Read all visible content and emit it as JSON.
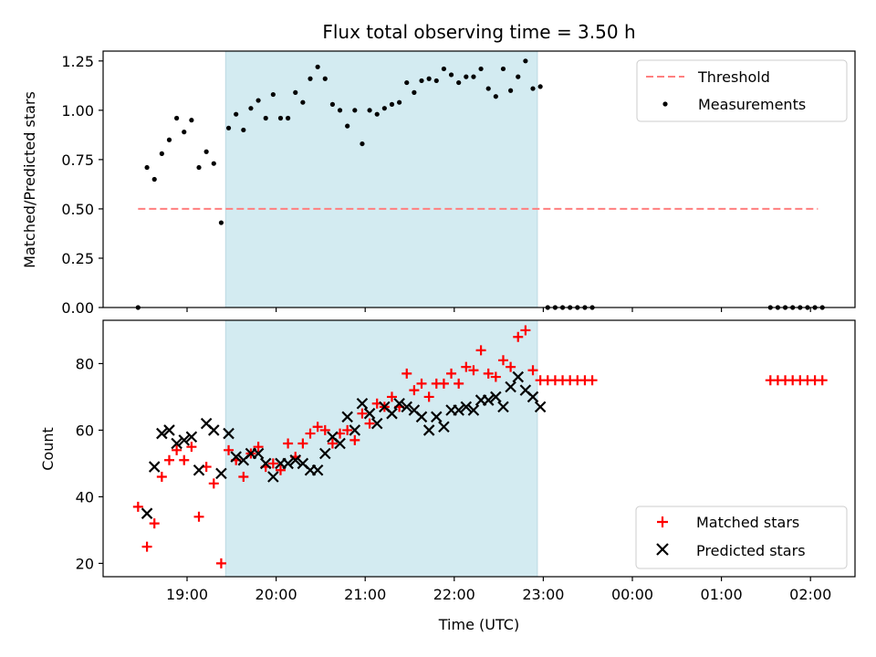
{
  "chart_data": [
    {
      "type": "scatter",
      "title": "Flux total observing time = 3.50 h",
      "xlabel": "",
      "ylabel": "Matched/Predicted stars",
      "ylim": [
        0,
        1.3
      ],
      "yticks": [
        "0.00",
        "0.25",
        "0.50",
        "0.75",
        "1.00",
        "1.25"
      ],
      "shaded_span": [
        "19:26",
        "22:56"
      ],
      "shade_color": "#d3ebf1",
      "legend": {
        "position": "upper right",
        "entries": [
          "Threshold",
          "Measurements"
        ]
      },
      "series": [
        {
          "name": "Threshold",
          "kind": "dashed-line",
          "color": "#ff7f7f",
          "x": [
            "18:27",
            "02:05"
          ],
          "y": [
            0.5,
            0.5
          ]
        },
        {
          "name": "Measurements",
          "kind": "dot",
          "color": "#000000",
          "x": [
            "18:27",
            "18:33",
            "18:38",
            "18:43",
            "18:48",
            "18:53",
            "18:58",
            "19:03",
            "19:08",
            "19:13",
            "19:18",
            "19:23",
            "19:28",
            "19:33",
            "19:38",
            "19:43",
            "19:48",
            "19:53",
            "19:58",
            "20:03",
            "20:08",
            "20:13",
            "20:18",
            "20:23",
            "20:28",
            "20:33",
            "20:38",
            "20:43",
            "20:48",
            "20:53",
            "20:58",
            "21:03",
            "21:08",
            "21:13",
            "21:18",
            "21:23",
            "21:28",
            "21:33",
            "21:38",
            "21:43",
            "21:48",
            "21:53",
            "21:58",
            "22:03",
            "22:08",
            "22:13",
            "22:18",
            "22:23",
            "22:28",
            "22:33",
            "22:38",
            "22:43",
            "22:48",
            "22:53",
            "22:58",
            "23:03",
            "23:08",
            "23:13",
            "23:18",
            "23:23",
            "23:28",
            "23:33",
            "01:33",
            "01:38",
            "01:43",
            "01:48",
            "01:53",
            "01:58",
            "02:03",
            "02:08"
          ],
          "y": [
            0.0,
            0.71,
            0.65,
            0.78,
            0.85,
            0.96,
            0.89,
            0.95,
            0.71,
            0.79,
            0.73,
            0.43,
            0.91,
            0.98,
            0.9,
            1.01,
            1.05,
            0.96,
            1.08,
            0.96,
            0.96,
            1.09,
            1.04,
            1.16,
            1.22,
            1.16,
            1.03,
            1.0,
            0.92,
            1.0,
            0.83,
            1.0,
            0.98,
            1.01,
            1.03,
            1.04,
            1.14,
            1.09,
            1.15,
            1.16,
            1.15,
            1.21,
            1.18,
            1.14,
            1.17,
            1.17,
            1.21,
            1.11,
            1.07,
            1.21,
            1.1,
            1.17,
            1.25,
            1.11,
            1.12,
            0.0,
            0.0,
            0.0,
            0.0,
            0.0,
            0.0,
            0.0,
            0.0,
            0.0,
            0.0,
            0.0,
            0.0,
            0.0,
            0.0,
            0.0
          ]
        }
      ]
    },
    {
      "type": "scatter",
      "title": "",
      "xlabel": "Time (UTC)",
      "ylabel": "Count",
      "ylim": [
        16,
        93
      ],
      "yticks": [
        "20",
        "40",
        "60",
        "80"
      ],
      "xticks": [
        "19:00",
        "20:00",
        "21:00",
        "22:00",
        "23:00",
        "00:00",
        "01:00",
        "02:00"
      ],
      "shaded_span": [
        "19:26",
        "22:56"
      ],
      "shade_color": "#d3ebf1",
      "legend": {
        "position": "lower right",
        "entries": [
          "Matched stars",
          "Predicted stars"
        ]
      },
      "series": [
        {
          "name": "Matched stars",
          "kind": "plus",
          "color": "#ff0000",
          "x": [
            "18:27",
            "18:33",
            "18:38",
            "18:43",
            "18:48",
            "18:53",
            "18:58",
            "19:03",
            "19:08",
            "19:13",
            "19:18",
            "19:23",
            "19:28",
            "19:33",
            "19:38",
            "19:43",
            "19:48",
            "19:53",
            "19:58",
            "20:03",
            "20:08",
            "20:13",
            "20:18",
            "20:23",
            "20:28",
            "20:33",
            "20:38",
            "20:43",
            "20:48",
            "20:53",
            "20:58",
            "21:03",
            "21:08",
            "21:13",
            "21:18",
            "21:23",
            "21:28",
            "21:33",
            "21:38",
            "21:43",
            "21:48",
            "21:53",
            "21:58",
            "22:03",
            "22:08",
            "22:13",
            "22:18",
            "22:23",
            "22:28",
            "22:33",
            "22:38",
            "22:43",
            "22:48",
            "22:53",
            "22:58",
            "23:03",
            "23:08",
            "23:13",
            "23:18",
            "23:23",
            "23:28",
            "23:33",
            "01:33",
            "01:38",
            "01:43",
            "01:48",
            "01:53",
            "01:58",
            "02:03",
            "02:08"
          ],
          "y": [
            37,
            25,
            32,
            46,
            51,
            54,
            51,
            55,
            34,
            49,
            44,
            20,
            54,
            51,
            46,
            53,
            55,
            49,
            50,
            48,
            56,
            52,
            56,
            59,
            61,
            60,
            56,
            59,
            60,
            57,
            65,
            62,
            68,
            67,
            70,
            67,
            77,
            72,
            74,
            70,
            74,
            74,
            77,
            74,
            79,
            78,
            84,
            77,
            76,
            81,
            79,
            88,
            90,
            78,
            75,
            75,
            75,
            75,
            75,
            75,
            75,
            75,
            75,
            75,
            75,
            75,
            75,
            75,
            75,
            75
          ]
        },
        {
          "name": "Predicted stars",
          "kind": "x",
          "color": "#000000",
          "x": [
            "18:33",
            "18:38",
            "18:43",
            "18:48",
            "18:53",
            "18:58",
            "19:03",
            "19:08",
            "19:13",
            "19:18",
            "19:23",
            "19:28",
            "19:33",
            "19:38",
            "19:43",
            "19:48",
            "19:53",
            "19:58",
            "20:03",
            "20:08",
            "20:13",
            "20:18",
            "20:23",
            "20:28",
            "20:33",
            "20:38",
            "20:43",
            "20:48",
            "20:53",
            "20:58",
            "21:03",
            "21:08",
            "21:13",
            "21:18",
            "21:23",
            "21:28",
            "21:33",
            "21:38",
            "21:43",
            "21:48",
            "21:53",
            "21:58",
            "22:03",
            "22:08",
            "22:13",
            "22:18",
            "22:23",
            "22:28",
            "22:33",
            "22:38",
            "22:43",
            "22:48",
            "22:53",
            "22:58"
          ],
          "y": [
            35,
            49,
            59,
            60,
            56,
            57,
            58,
            48,
            62,
            60,
            47,
            59,
            52,
            51,
            53,
            53,
            50,
            46,
            50,
            50,
            51,
            50,
            48,
            48,
            53,
            58,
            56,
            64,
            60,
            68,
            65,
            62,
            67,
            65,
            68,
            67,
            66,
            64,
            60,
            64,
            61,
            66,
            66,
            67,
            66,
            69,
            69,
            70,
            67,
            73,
            76,
            72,
            70,
            67
          ]
        }
      ]
    }
  ]
}
